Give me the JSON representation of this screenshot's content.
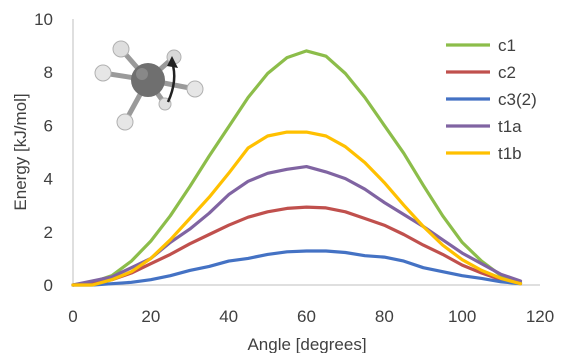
{
  "chart_data": {
    "type": "line",
    "title": "",
    "xlabel": "Angle [degrees]",
    "ylabel": "Energy [kJ/mol]",
    "xlim": [
      0,
      120
    ],
    "ylim": [
      0,
      10
    ],
    "xticks": [
      0,
      20,
      40,
      60,
      80,
      100,
      120
    ],
    "yticks": [
      0,
      2,
      4,
      6,
      8,
      10
    ],
    "grid": false,
    "legend_position": "top-right",
    "x": [
      0,
      5,
      10,
      15,
      20,
      25,
      30,
      35,
      40,
      45,
      50,
      55,
      60,
      65,
      70,
      75,
      80,
      85,
      90,
      95,
      100,
      105,
      110,
      115
    ],
    "series": [
      {
        "name": "c1",
        "color": "#8cbd4a",
        "values": [
          0.0,
          0.1,
          0.35,
          0.9,
          1.65,
          2.6,
          3.7,
          4.85,
          5.95,
          7.05,
          7.95,
          8.55,
          8.8,
          8.6,
          7.95,
          7.05,
          6.0,
          4.95,
          3.75,
          2.6,
          1.6,
          0.9,
          0.35,
          0.1
        ]
      },
      {
        "name": "c2",
        "color": "#c0504d",
        "values": [
          0.0,
          0.05,
          0.2,
          0.45,
          0.8,
          1.15,
          1.55,
          1.9,
          2.25,
          2.55,
          2.75,
          2.88,
          2.93,
          2.9,
          2.75,
          2.5,
          2.25,
          1.9,
          1.5,
          1.15,
          0.75,
          0.45,
          0.2,
          0.05
        ]
      },
      {
        "name": "c3(2)",
        "color": "#4472c4",
        "values": [
          0.0,
          0.0,
          0.05,
          0.1,
          0.2,
          0.35,
          0.55,
          0.7,
          0.9,
          1.0,
          1.15,
          1.25,
          1.28,
          1.28,
          1.22,
          1.1,
          1.05,
          0.9,
          0.65,
          0.5,
          0.35,
          0.25,
          0.12,
          0.05
        ]
      },
      {
        "name": "t1a",
        "color": "#8064a2",
        "values": [
          0.0,
          0.15,
          0.3,
          0.65,
          1.0,
          1.6,
          2.1,
          2.7,
          3.4,
          3.9,
          4.2,
          4.35,
          4.45,
          4.25,
          4.0,
          3.6,
          3.1,
          2.65,
          2.2,
          1.7,
          1.2,
          0.8,
          0.4,
          0.15
        ]
      },
      {
        "name": "t1b",
        "color": "#ffc000",
        "values": [
          0.0,
          0.0,
          0.2,
          0.5,
          1.0,
          1.7,
          2.5,
          3.3,
          4.2,
          5.15,
          5.6,
          5.75,
          5.75,
          5.6,
          5.2,
          4.6,
          3.85,
          3.0,
          2.2,
          1.5,
          0.95,
          0.55,
          0.25,
          0.05
        ]
      }
    ]
  },
  "molecule_icon": "ethane-rotation-molecule-icon"
}
